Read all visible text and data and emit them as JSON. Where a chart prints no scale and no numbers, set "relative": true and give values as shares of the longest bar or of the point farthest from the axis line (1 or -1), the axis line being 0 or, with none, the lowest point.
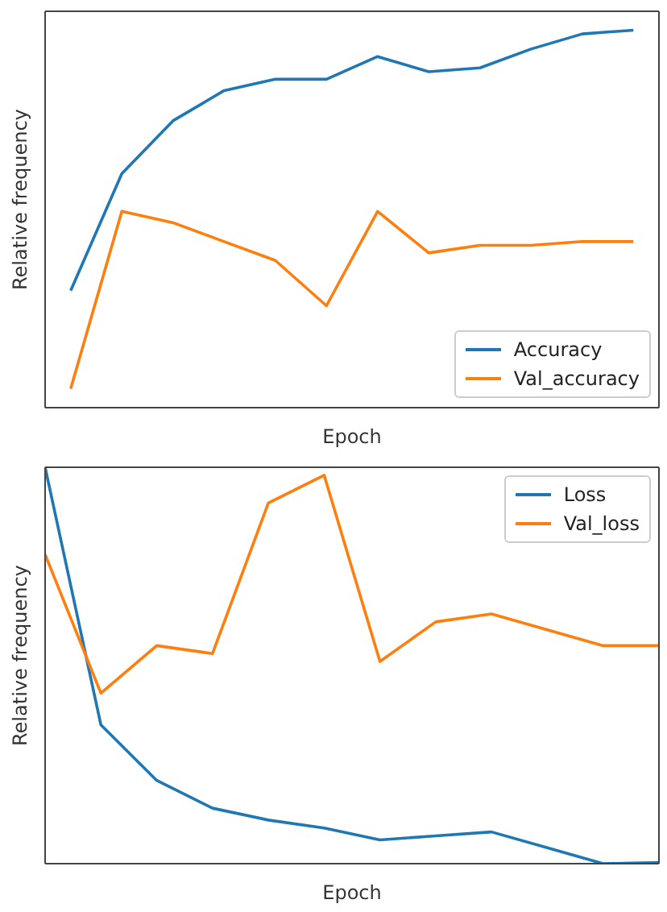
{
  "chart_data": [
    {
      "type": "line",
      "relative": true,
      "xlabel": "Epoch",
      "ylabel": "Relative frequency",
      "categories": [
        null,
        null,
        null,
        null,
        null,
        null,
        null,
        null,
        null,
        null,
        null,
        null
      ],
      "legend": "bottom right",
      "series": [
        {
          "name": "Accuracy",
          "color": "#1f77b4",
          "values": [
            0.31,
            0.62,
            0.76,
            0.84,
            0.87,
            0.87,
            0.93,
            0.89,
            0.9,
            0.95,
            0.99,
            1
          ]
        },
        {
          "name": "Val_accuracy",
          "color": "#ff7f0e",
          "values": [
            0.05,
            0.52,
            0.49,
            0.44,
            0.39,
            0.27,
            0.52,
            0.41,
            0.43,
            0.43,
            0.44,
            0.44
          ]
        }
      ]
    },
    {
      "type": "line",
      "relative": true,
      "xlabel": "Epoch",
      "ylabel": "Relative frequency",
      "categories": [
        null,
        null,
        null,
        null,
        null,
        null,
        null,
        null,
        null,
        null,
        null,
        null
      ],
      "legend": "top right",
      "series": [
        {
          "name": "Loss",
          "color": "#1f77b4",
          "values": [
            1,
            0.35,
            0.21,
            0.14,
            0.11,
            0.09,
            0.06,
            0.07,
            0.08,
            0.04,
            0,
            0.003
          ]
        },
        {
          "name": "Val_loss",
          "color": "#ff7f0e",
          "values": [
            0.78,
            0.43,
            0.55,
            0.53,
            0.91,
            0.98,
            0.51,
            0.61,
            0.63,
            0.59,
            0.55,
            0.55
          ]
        }
      ]
    }
  ]
}
